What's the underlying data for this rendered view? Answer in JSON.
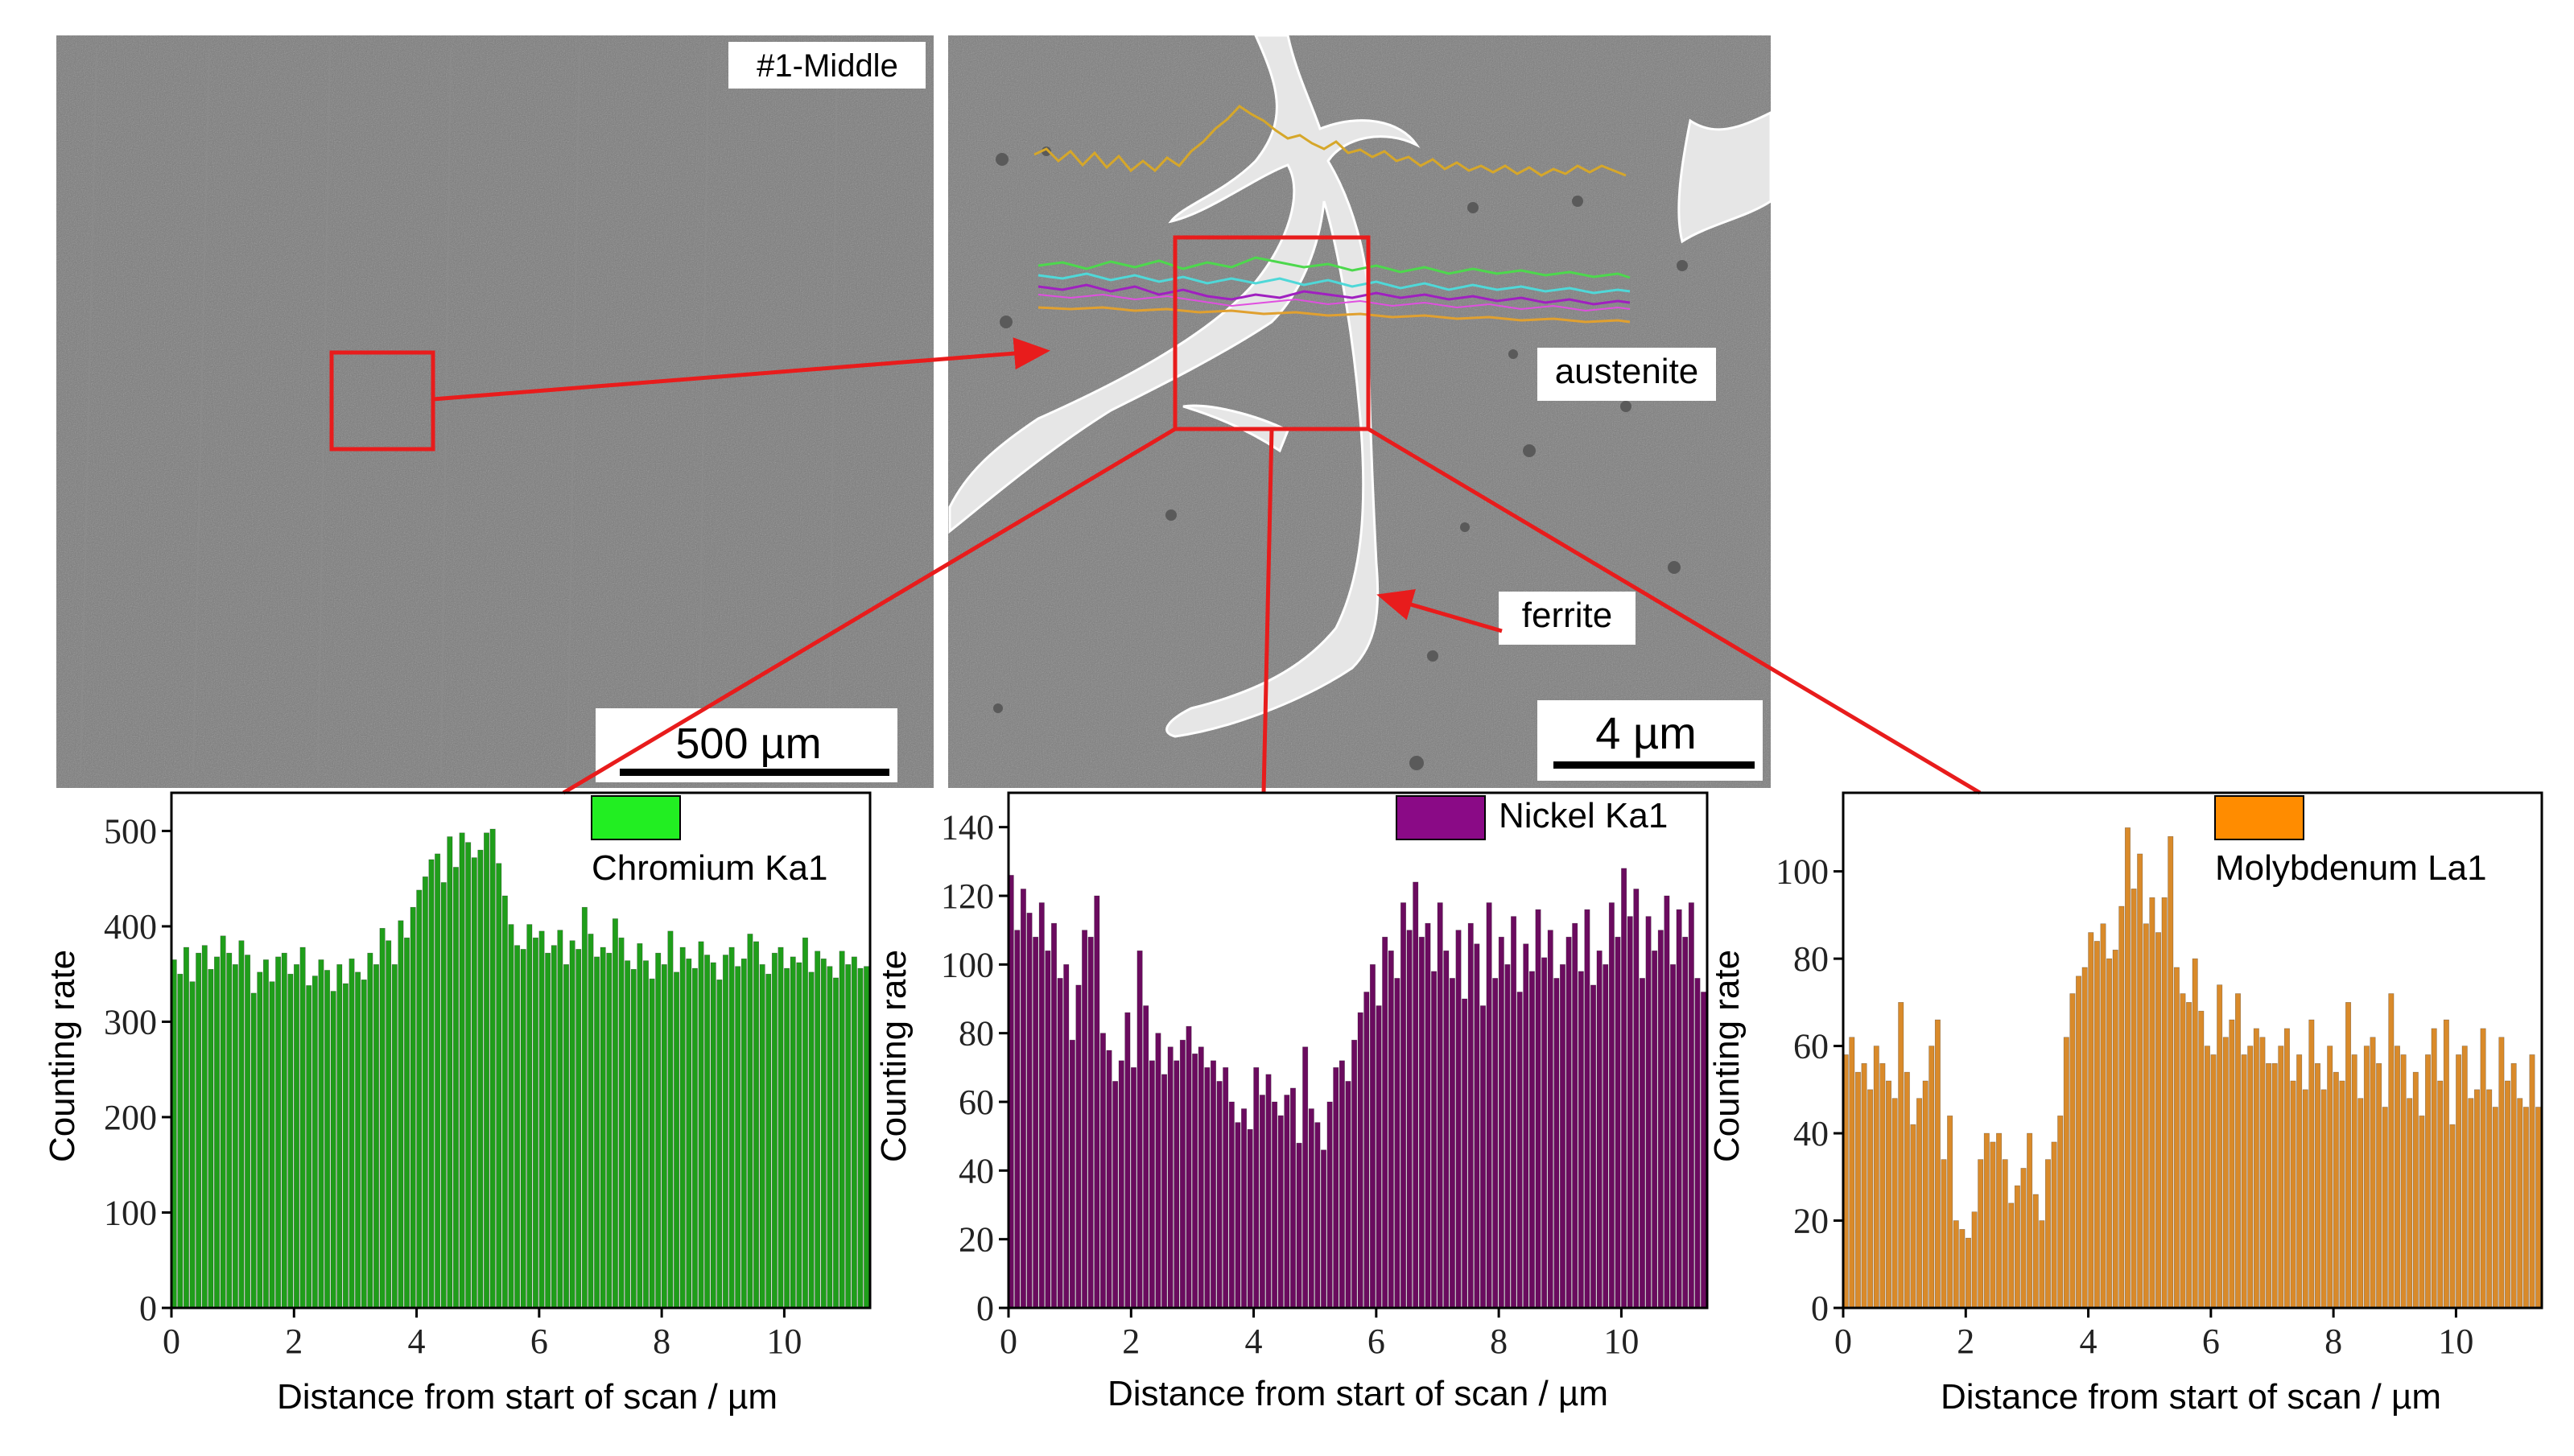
{
  "figure": {
    "sem_left": {
      "label": "#1-Middle",
      "scale_bar": "500 µm"
    },
    "sem_right": {
      "label_austenite": "austenite",
      "label_ferrite": "ferrite",
      "scale_bar": "4 µm"
    }
  },
  "colors": {
    "chromium": "#1f9e1a",
    "chromium_legend": "#22ee22",
    "nickel": "#6b0b5f",
    "nickel_legend": "#8a0a86",
    "molybdenum": "#d98a2a",
    "molybdenum_legend": "#ff8c00",
    "annotation": "#e81c1c"
  },
  "chart_data": [
    {
      "type": "bar",
      "title": "",
      "legend": "Chromium Ka1",
      "xlabel": "Distance from start of scan / µm",
      "ylabel": "Counting rate",
      "xlim": [
        0,
        11.4
      ],
      "ylim": [
        0,
        540
      ],
      "xticks": [
        0,
        2,
        4,
        6,
        8,
        10
      ],
      "yticks": [
        0,
        100,
        200,
        300,
        400,
        500
      ],
      "x": [
        0.0,
        0.1,
        0.2,
        0.3,
        0.4,
        0.5,
        0.6,
        0.7,
        0.8,
        0.9,
        1.0,
        1.1,
        1.2,
        1.3,
        1.4,
        1.5,
        1.6,
        1.7,
        1.8,
        1.9,
        2.0,
        2.1,
        2.2,
        2.3,
        2.4,
        2.5,
        2.6,
        2.7,
        2.8,
        2.9,
        3.0,
        3.1,
        3.2,
        3.3,
        3.4,
        3.5,
        3.6,
        3.7,
        3.8,
        3.9,
        4.0,
        4.1,
        4.2,
        4.3,
        4.4,
        4.5,
        4.6,
        4.7,
        4.8,
        4.9,
        5.0,
        5.1,
        5.2,
        5.3,
        5.4,
        5.5,
        5.6,
        5.7,
        5.8,
        5.9,
        6.0,
        6.1,
        6.2,
        6.3,
        6.4,
        6.5,
        6.6,
        6.7,
        6.8,
        6.9,
        7.0,
        7.1,
        7.2,
        7.3,
        7.4,
        7.5,
        7.6,
        7.7,
        7.8,
        7.9,
        8.0,
        8.1,
        8.2,
        8.3,
        8.4,
        8.5,
        8.6,
        8.7,
        8.8,
        8.9,
        9.0,
        9.1,
        9.2,
        9.3,
        9.4,
        9.5,
        9.6,
        9.7,
        9.8,
        9.9,
        10.0,
        10.1,
        10.2,
        10.3,
        10.4,
        10.5,
        10.6,
        10.7,
        10.8,
        10.9,
        11.0,
        11.1,
        11.2,
        11.3
      ],
      "values": [
        365,
        350,
        378,
        342,
        372,
        380,
        355,
        368,
        390,
        372,
        360,
        385,
        370,
        330,
        352,
        365,
        342,
        368,
        372,
        350,
        360,
        378,
        338,
        348,
        365,
        354,
        332,
        360,
        340,
        366,
        352,
        344,
        372,
        360,
        398,
        385,
        360,
        406,
        388,
        420,
        438,
        452,
        470,
        476,
        446,
        494,
        462,
        498,
        488,
        472,
        480,
        498,
        502,
        466,
        432,
        402,
        380,
        376,
        402,
        388,
        395,
        372,
        380,
        396,
        360,
        385,
        376,
        420,
        392,
        368,
        378,
        372,
        408,
        388,
        364,
        355,
        382,
        364,
        345,
        372,
        360,
        395,
        352,
        378,
        366,
        356,
        384,
        370,
        362,
        344,
        370,
        378,
        358,
        366,
        392,
        384,
        360,
        350,
        372,
        378,
        356,
        368,
        362,
        388,
        352,
        374,
        366,
        358,
        346,
        374,
        360,
        368,
        356,
        358
      ]
    },
    {
      "type": "bar",
      "title": "",
      "legend": "Nickel Ka1",
      "xlabel": "Distance from start of scan / µm",
      "ylabel": "Counting rate",
      "xlim": [
        0,
        11.4
      ],
      "ylim": [
        0,
        150
      ],
      "xticks": [
        0,
        2,
        4,
        6,
        8,
        10
      ],
      "yticks": [
        0,
        20,
        40,
        60,
        80,
        100,
        120,
        140
      ],
      "x": [
        0.0,
        0.1,
        0.2,
        0.3,
        0.4,
        0.5,
        0.6,
        0.7,
        0.8,
        0.9,
        1.0,
        1.1,
        1.2,
        1.3,
        1.4,
        1.5,
        1.6,
        1.7,
        1.8,
        1.9,
        2.0,
        2.1,
        2.2,
        2.3,
        2.4,
        2.5,
        2.6,
        2.7,
        2.8,
        2.9,
        3.0,
        3.1,
        3.2,
        3.3,
        3.4,
        3.5,
        3.6,
        3.7,
        3.8,
        3.9,
        4.0,
        4.1,
        4.2,
        4.3,
        4.4,
        4.5,
        4.6,
        4.7,
        4.8,
        4.9,
        5.0,
        5.1,
        5.2,
        5.3,
        5.4,
        5.5,
        5.6,
        5.7,
        5.8,
        5.9,
        6.0,
        6.1,
        6.2,
        6.3,
        6.4,
        6.5,
        6.6,
        6.7,
        6.8,
        6.9,
        7.0,
        7.1,
        7.2,
        7.3,
        7.4,
        7.5,
        7.6,
        7.7,
        7.8,
        7.9,
        8.0,
        8.1,
        8.2,
        8.3,
        8.4,
        8.5,
        8.6,
        8.7,
        8.8,
        8.9,
        9.0,
        9.1,
        9.2,
        9.3,
        9.4,
        9.5,
        9.6,
        9.7,
        9.8,
        9.9,
        10.0,
        10.1,
        10.2,
        10.3,
        10.4,
        10.5,
        10.6,
        10.7,
        10.8,
        10.9,
        11.0,
        11.1,
        11.2,
        11.3
      ],
      "values": [
        126,
        110,
        122,
        115,
        108,
        118,
        104,
        112,
        96,
        100,
        78,
        94,
        110,
        108,
        120,
        80,
        75,
        66,
        72,
        86,
        70,
        104,
        88,
        72,
        80,
        68,
        76,
        72,
        78,
        82,
        74,
        76,
        70,
        72,
        66,
        70,
        60,
        54,
        58,
        52,
        70,
        62,
        68,
        60,
        56,
        62,
        64,
        48,
        76,
        58,
        54,
        46,
        60,
        70,
        72,
        66,
        78,
        86,
        92,
        100,
        88,
        108,
        104,
        96,
        118,
        110,
        124,
        108,
        112,
        98,
        118,
        104,
        96,
        110,
        90,
        112,
        106,
        88,
        118,
        96,
        108,
        100,
        114,
        92,
        106,
        98,
        116,
        102,
        110,
        96,
        100,
        108,
        112,
        98,
        116,
        94,
        104,
        100,
        118,
        108,
        128,
        114,
        122,
        96,
        114,
        104,
        110,
        120,
        100,
        116,
        108,
        118,
        96,
        92
      ]
    },
    {
      "type": "bar",
      "title": "",
      "legend": "Molybdenum La1",
      "xlabel": "Distance from start of scan / µm",
      "ylabel": "Counting rate",
      "xlim": [
        0,
        11.4
      ],
      "ylim": [
        0,
        118
      ],
      "xticks": [
        0,
        2,
        4,
        6,
        8,
        10
      ],
      "yticks": [
        0,
        20,
        40,
        60,
        80,
        100
      ],
      "x": [
        0.0,
        0.1,
        0.2,
        0.3,
        0.4,
        0.5,
        0.6,
        0.7,
        0.8,
        0.9,
        1.0,
        1.1,
        1.2,
        1.3,
        1.4,
        1.5,
        1.6,
        1.7,
        1.8,
        1.9,
        2.0,
        2.1,
        2.2,
        2.3,
        2.4,
        2.5,
        2.6,
        2.7,
        2.8,
        2.9,
        3.0,
        3.1,
        3.2,
        3.3,
        3.4,
        3.5,
        3.6,
        3.7,
        3.8,
        3.9,
        4.0,
        4.1,
        4.2,
        4.3,
        4.4,
        4.5,
        4.6,
        4.7,
        4.8,
        4.9,
        5.0,
        5.1,
        5.2,
        5.3,
        5.4,
        5.5,
        5.6,
        5.7,
        5.8,
        5.9,
        6.0,
        6.1,
        6.2,
        6.3,
        6.4,
        6.5,
        6.6,
        6.7,
        6.8,
        6.9,
        7.0,
        7.1,
        7.2,
        7.3,
        7.4,
        7.5,
        7.6,
        7.7,
        7.8,
        7.9,
        8.0,
        8.1,
        8.2,
        8.3,
        8.4,
        8.5,
        8.6,
        8.7,
        8.8,
        8.9,
        9.0,
        9.1,
        9.2,
        9.3,
        9.4,
        9.5,
        9.6,
        9.7,
        9.8,
        9.9,
        10.0,
        10.1,
        10.2,
        10.3,
        10.4,
        10.5,
        10.6,
        10.7,
        10.8,
        10.9,
        11.0,
        11.1,
        11.2,
        11.3
      ],
      "values": [
        58,
        62,
        54,
        56,
        50,
        60,
        56,
        52,
        48,
        70,
        54,
        42,
        48,
        52,
        60,
        66,
        34,
        44,
        20,
        18,
        16,
        22,
        34,
        40,
        38,
        40,
        34,
        24,
        28,
        32,
        40,
        26,
        20,
        34,
        38,
        44,
        62,
        72,
        76,
        78,
        86,
        84,
        88,
        80,
        82,
        92,
        110,
        96,
        104,
        88,
        94,
        86,
        94,
        108,
        78,
        72,
        70,
        80,
        68,
        60,
        58,
        74,
        62,
        66,
        72,
        58,
        60,
        64,
        62,
        56,
        56,
        60,
        64,
        52,
        58,
        50,
        66,
        56,
        50,
        60,
        54,
        52,
        70,
        58,
        48,
        60,
        62,
        56,
        46,
        72,
        60,
        58,
        48,
        54,
        44,
        58,
        64,
        52,
        66,
        42,
        58,
        60,
        48,
        50,
        64,
        50,
        46,
        62,
        52,
        56,
        48,
        46,
        58,
        46
      ]
    }
  ]
}
